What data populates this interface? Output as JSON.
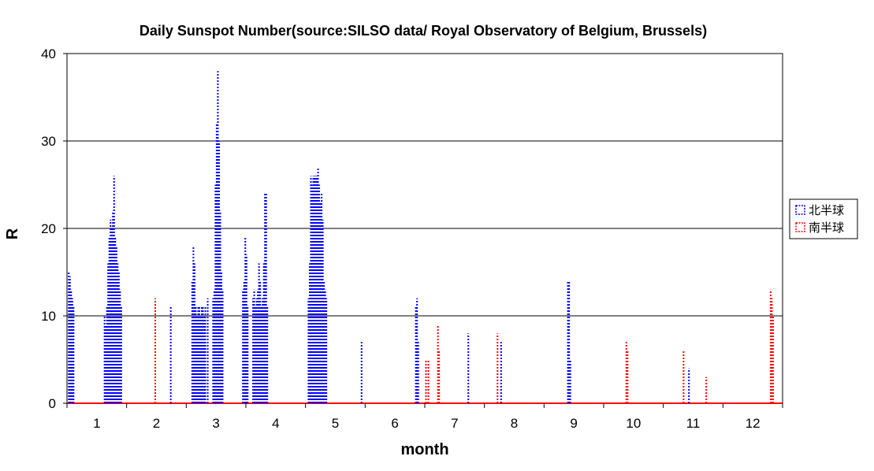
{
  "chart_data": {
    "type": "bar",
    "title": "Daily Sunspot Number(source:SILSO data/ Royal Observatory of Belgium, Brussels)",
    "xlabel": "month",
    "ylabel": "R",
    "ylim": [
      0,
      40
    ],
    "yticks": [
      0,
      10,
      20,
      30,
      40
    ],
    "grid": true,
    "legend_position": "right",
    "x_domain": [
      0.5,
      12.5
    ],
    "months": [
      "1",
      "2",
      "3",
      "4",
      "5",
      "6",
      "7",
      "8",
      "9",
      "10",
      "11",
      "12"
    ],
    "series": [
      {
        "name": "北半球",
        "color": "#0000ff",
        "style": "dotted",
        "points": [
          [
            0.53,
            15
          ],
          [
            0.55,
            14.5
          ],
          [
            0.57,
            13
          ],
          [
            0.59,
            12
          ],
          [
            0.61,
            11
          ],
          [
            1.13,
            10
          ],
          [
            1.15,
            9
          ],
          [
            1.17,
            11
          ],
          [
            1.19,
            16
          ],
          [
            1.21,
            19
          ],
          [
            1.23,
            21
          ],
          [
            1.25,
            20
          ],
          [
            1.27,
            22
          ],
          [
            1.29,
            26
          ],
          [
            1.31,
            19
          ],
          [
            1.33,
            18
          ],
          [
            1.35,
            16
          ],
          [
            1.37,
            15
          ],
          [
            1.39,
            13
          ],
          [
            1.41,
            11
          ],
          [
            2.24,
            11
          ],
          [
            2.6,
            14
          ],
          [
            2.62,
            18
          ],
          [
            2.64,
            16
          ],
          [
            2.66,
            11
          ],
          [
            2.68,
            10
          ],
          [
            2.7,
            11
          ],
          [
            2.72,
            11
          ],
          [
            2.74,
            10
          ],
          [
            2.76,
            11
          ],
          [
            2.78,
            11
          ],
          [
            2.8,
            10
          ],
          [
            2.82,
            11
          ],
          [
            2.86,
            12
          ],
          [
            2.95,
            12
          ],
          [
            2.97,
            13
          ],
          [
            2.99,
            25
          ],
          [
            3.01,
            32
          ],
          [
            3.03,
            38
          ],
          [
            3.05,
            30
          ],
          [
            3.07,
            22
          ],
          [
            3.09,
            15
          ],
          [
            3.11,
            13
          ],
          [
            3.45,
            13
          ],
          [
            3.47,
            14
          ],
          [
            3.49,
            19
          ],
          [
            3.51,
            17
          ],
          [
            3.53,
            11
          ],
          [
            3.62,
            12
          ],
          [
            3.64,
            13
          ],
          [
            3.66,
            11
          ],
          [
            3.68,
            12
          ],
          [
            3.7,
            13
          ],
          [
            3.72,
            16
          ],
          [
            3.74,
            14
          ],
          [
            3.76,
            11
          ],
          [
            3.78,
            12
          ],
          [
            3.8,
            16
          ],
          [
            3.82,
            24
          ],
          [
            3.84,
            24
          ],
          [
            3.86,
            11
          ],
          [
            4.55,
            12
          ],
          [
            4.57,
            16
          ],
          [
            4.59,
            26
          ],
          [
            4.61,
            25
          ],
          [
            4.63,
            26
          ],
          [
            4.65,
            26
          ],
          [
            4.67,
            26
          ],
          [
            4.69,
            26
          ],
          [
            4.71,
            27
          ],
          [
            4.73,
            25
          ],
          [
            4.75,
            23
          ],
          [
            4.77,
            24
          ],
          [
            4.79,
            21
          ],
          [
            4.81,
            14
          ],
          [
            4.83,
            13
          ],
          [
            4.85,
            12
          ],
          [
            5.44,
            7
          ],
          [
            6.35,
            11
          ],
          [
            6.37,
            12
          ],
          [
            6.39,
            7
          ],
          [
            7.23,
            8
          ],
          [
            7.78,
            7
          ],
          [
            8.9,
            14
          ],
          [
            8.92,
            14
          ],
          [
            8.94,
            5
          ],
          [
            10.93,
            4
          ]
        ]
      },
      {
        "name": "南半球",
        "color": "#ff0000",
        "style": "dotted",
        "points": [
          [
            1.98,
            12
          ],
          [
            6.52,
            5
          ],
          [
            6.56,
            5
          ],
          [
            6.72,
            9
          ],
          [
            6.74,
            6
          ],
          [
            7.72,
            8
          ],
          [
            9.88,
            7
          ],
          [
            9.9,
            6
          ],
          [
            10.84,
            6
          ],
          [
            11.22,
            3
          ],
          [
            12.3,
            13
          ],
          [
            12.32,
            12
          ],
          [
            12.34,
            10
          ]
        ]
      }
    ]
  }
}
